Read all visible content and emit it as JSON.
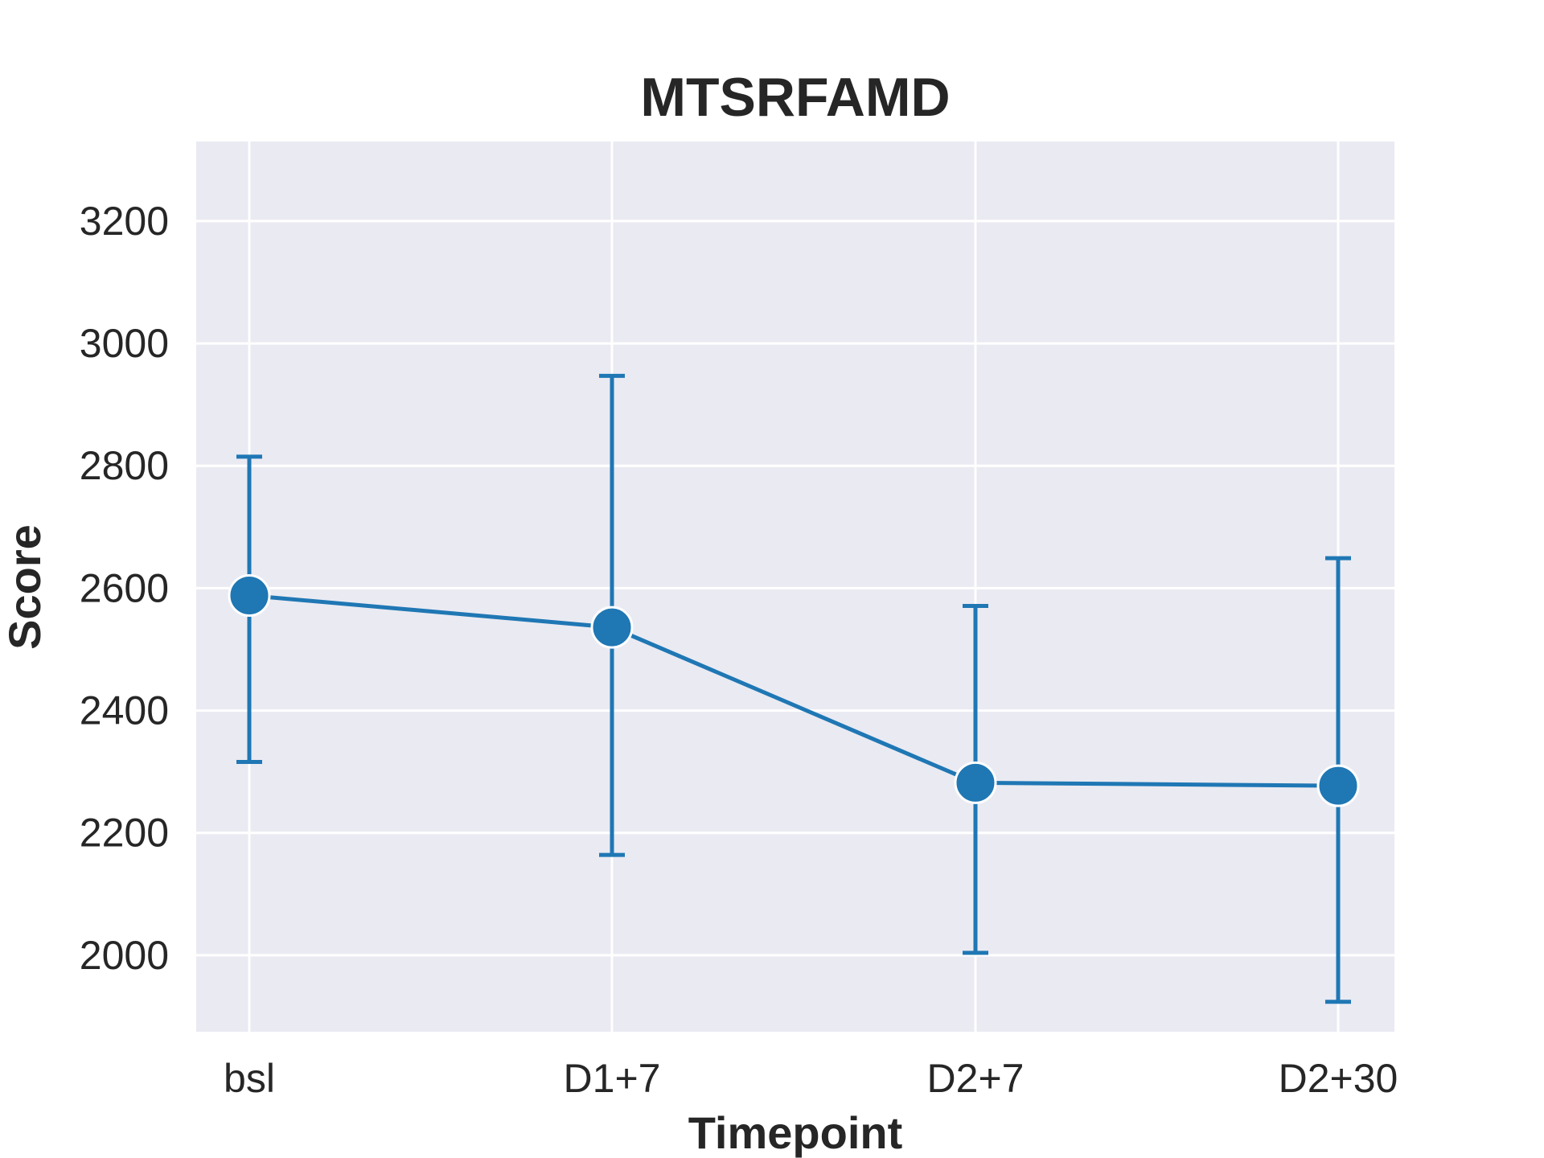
{
  "chart_data": {
    "type": "line",
    "title": "MTSRFAMD",
    "xlabel": "Timepoint",
    "ylabel": "Score",
    "categories": [
      "bsl",
      "D1+7",
      "D2+7",
      "D2+30"
    ],
    "series": [
      {
        "values": [
          2588,
          2536,
          2282,
          2277
        ],
        "error_low": [
          2316,
          2164,
          2004,
          1924
        ],
        "error_high": [
          2815,
          2947,
          2571,
          2649
        ],
        "color": "#1f77b4"
      }
    ],
    "yticks": [
      2000,
      2200,
      2400,
      2600,
      2800,
      3000,
      3200
    ],
    "ylim": [
      1875,
      3330
    ],
    "grid": true,
    "background": "#eaeaf2"
  }
}
